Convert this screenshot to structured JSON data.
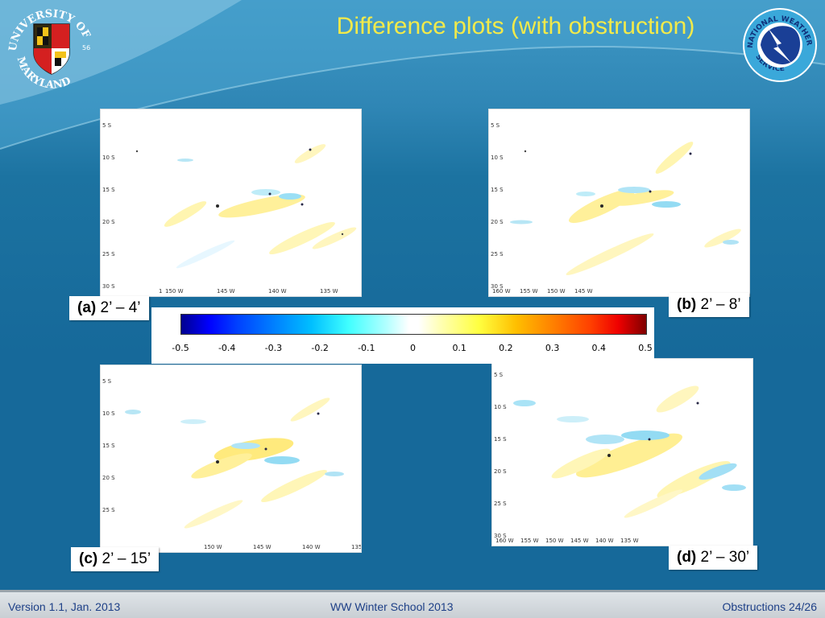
{
  "slide": {
    "title": "Difference plots (with obstruction)",
    "colors": {
      "title": "#f2ea4a",
      "background": "#16699a",
      "footer_text": "#1d3f87"
    }
  },
  "logos": {
    "umd": {
      "text_top": "UNIVERSITY OF",
      "text_bottom": "MARYLAND",
      "year": "56",
      "icon": "university-seal"
    },
    "nws": {
      "text_top": "NATIONAL WEATHER",
      "text_bottom": "SERVICE",
      "icon": "nws-emblem"
    }
  },
  "panels": [
    {
      "id": "a",
      "letter": "(a)",
      "range": "2’ – 4’",
      "y_ticks": [
        "5 S",
        "10 S",
        "15 S",
        "20 S",
        "25 S",
        "30 S"
      ],
      "x_ticks": [
        "150 W",
        "145 W",
        "140 W",
        "135 W"
      ],
      "x_ticks_partial": [
        "1"
      ]
    },
    {
      "id": "b",
      "letter": "(b)",
      "range": "2’ – 8’",
      "y_ticks": [
        "5 S",
        "10 S",
        "15 S",
        "20 S",
        "25 S",
        "30 S"
      ],
      "x_ticks": [
        "160 W",
        "155 W",
        "150 W",
        "145 W"
      ]
    },
    {
      "id": "c",
      "letter": "(c)",
      "range": "2’ – 15’",
      "y_ticks": [
        "5 S",
        "10 S",
        "15 S",
        "20 S",
        "25 S"
      ],
      "x_ticks": [
        "150 W",
        "145 W",
        "140 W",
        "135"
      ]
    },
    {
      "id": "d",
      "letter": "(d)",
      "range": "2’ – 30’",
      "y_ticks": [
        "5 S",
        "10 S",
        "15 S",
        "20 S",
        "25 S",
        "30 S"
      ],
      "x_ticks": [
        "160 W",
        "155 W",
        "150 W",
        "145 W",
        "140 W",
        "135 W"
      ]
    }
  ],
  "colorbar": {
    "ticks": [
      "-0.5",
      "-0.4",
      "-0.3",
      "-0.2",
      "-0.1",
      "0",
      "0.1",
      "0.2",
      "0.3",
      "0.4",
      "0.5"
    ],
    "range": [
      -0.5,
      0.5
    ],
    "colormap": "jet"
  },
  "footer": {
    "left": "Version 1.1, Jan. 2013",
    "center": "WW Winter School 2013",
    "right": "Obstructions 24/26"
  }
}
